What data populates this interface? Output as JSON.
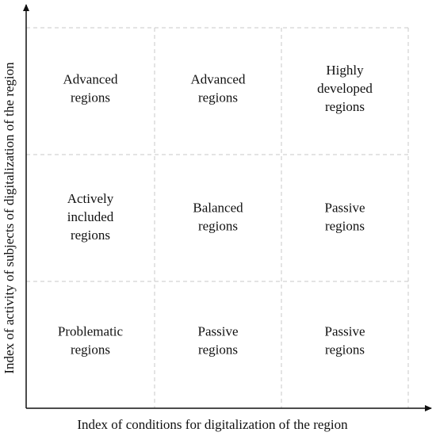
{
  "x_axis_label": "Index of conditions for digitalization  of the region",
  "y_axis_label": "Index of activity of subjects of digitalization  of the region",
  "grid": {
    "rows": [
      [
        [
          "Advanced",
          "regions"
        ],
        [
          "Advanced",
          "regions"
        ],
        [
          "Highly",
          "developed",
          "regions"
        ]
      ],
      [
        [
          "Actively",
          "included",
          "regions"
        ],
        [
          "Balanced",
          "regions"
        ],
        [
          "Passive",
          "regions"
        ]
      ],
      [
        [
          "Problematic",
          "regions"
        ],
        [
          "Passive",
          "regions"
        ],
        [
          "Passive",
          "regions"
        ]
      ]
    ]
  }
}
